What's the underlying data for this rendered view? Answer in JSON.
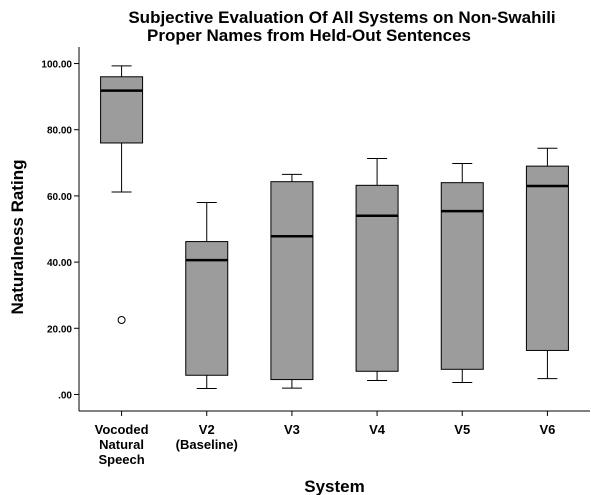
{
  "chart_data": {
    "type": "boxplot",
    "title": [
      "Subjective Evaluation Of All Systems on Non-Swahili",
      "Proper Names from Held-Out Sentences"
    ],
    "xlabel": "System",
    "ylabel": "Naturalness Rating",
    "ylim": [
      -5,
      105
    ],
    "yticks": [
      0,
      20,
      40,
      60,
      80,
      100
    ],
    "ytick_labels": [
      ".00",
      "20.00",
      "40.00",
      "60.00",
      "80.00",
      "100.00"
    ],
    "grid": false,
    "box_color": "#9c9c9c",
    "categories": [
      [
        "Vocoded",
        "Natural",
        "Speech"
      ],
      [
        "V2",
        "(Baseline)"
      ],
      [
        "V3"
      ],
      [
        "V4"
      ],
      [
        "V5"
      ],
      [
        "V6"
      ]
    ],
    "boxes": [
      {
        "whisker_low": 61.2,
        "q1": 76.0,
        "median": 91.8,
        "q3": 96.0,
        "whisker_high": 99.3,
        "outliers": [
          22.5
        ]
      },
      {
        "whisker_low": 1.8,
        "q1": 5.8,
        "median": 40.6,
        "q3": 46.2,
        "whisker_high": 58.0,
        "outliers": []
      },
      {
        "whisker_low": 1.9,
        "q1": 4.5,
        "median": 47.8,
        "q3": 64.3,
        "whisker_high": 66.5,
        "outliers": []
      },
      {
        "whisker_low": 4.2,
        "q1": 7.0,
        "median": 54.0,
        "q3": 63.2,
        "whisker_high": 71.3,
        "outliers": []
      },
      {
        "whisker_low": 3.6,
        "q1": 7.6,
        "median": 55.4,
        "q3": 64.0,
        "whisker_high": 69.8,
        "outliers": []
      },
      {
        "whisker_low": 4.8,
        "q1": 13.3,
        "median": 63.0,
        "q3": 69.0,
        "whisker_high": 74.4,
        "outliers": []
      }
    ]
  }
}
